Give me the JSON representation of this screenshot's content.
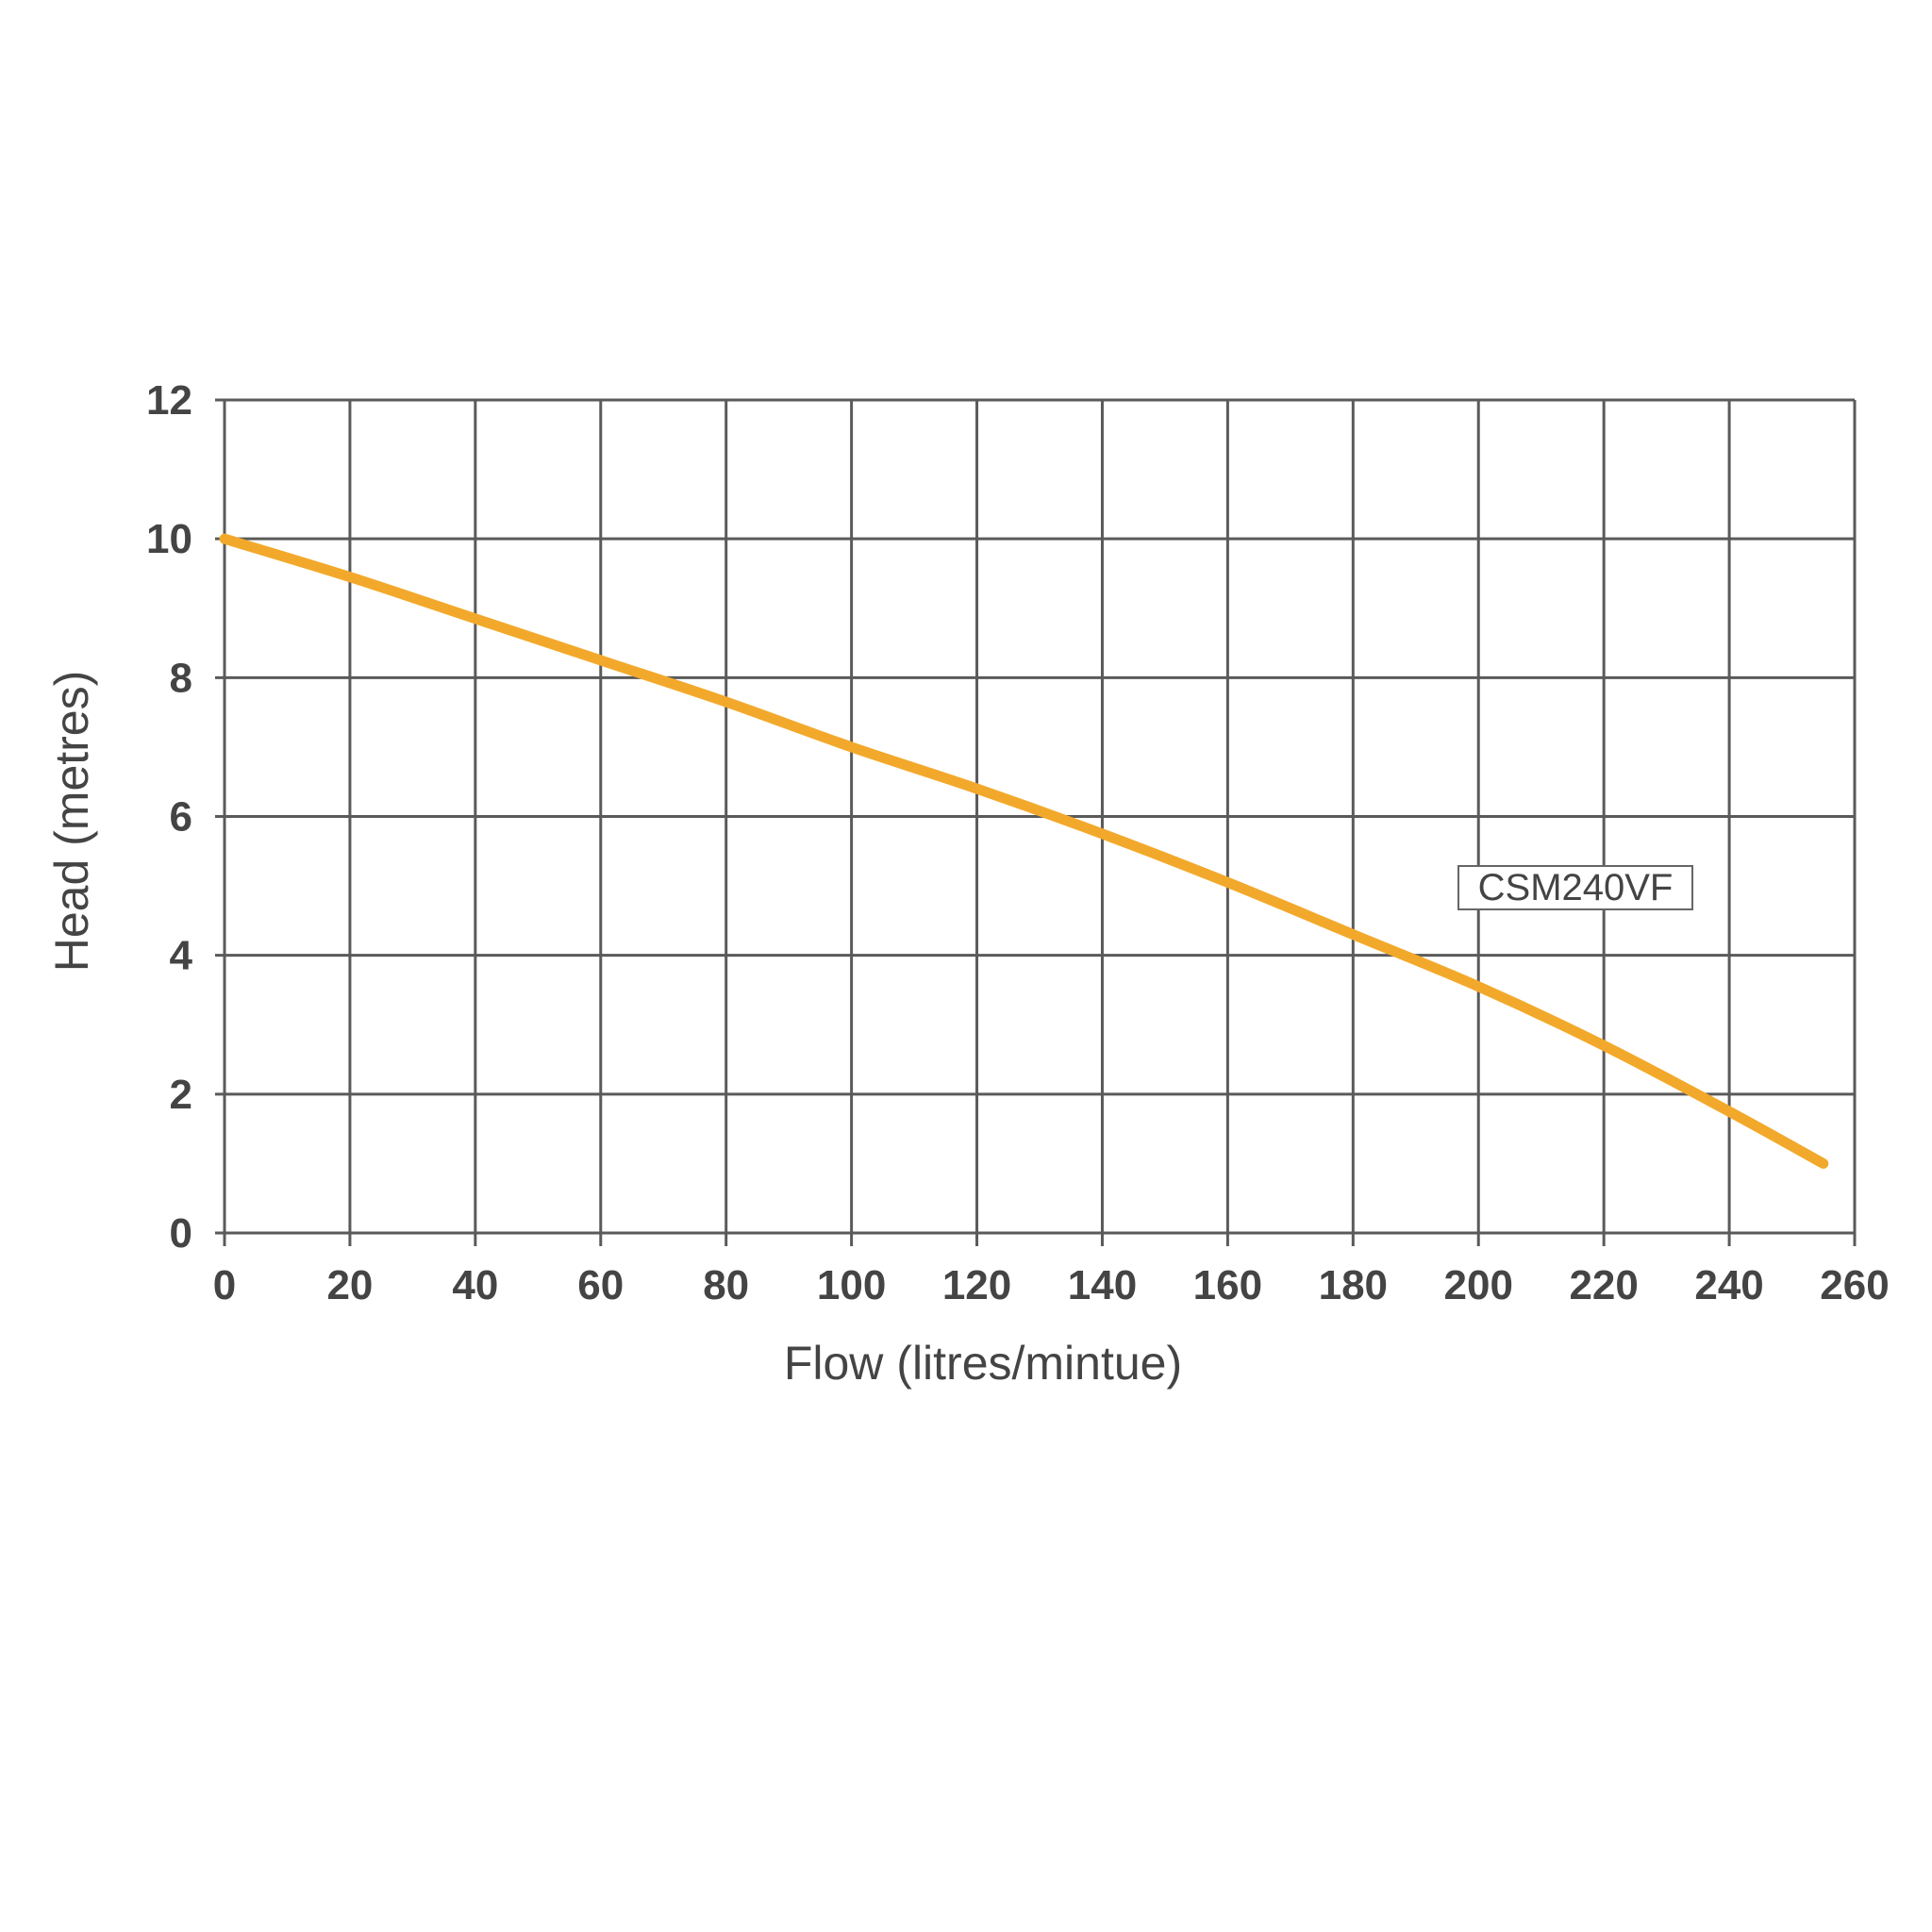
{
  "chart_data": {
    "type": "line",
    "title": "",
    "xlabel": "Flow (litres/mintue)",
    "ylabel": "Head (metres)",
    "xlim": [
      0,
      260
    ],
    "ylim": [
      0,
      12
    ],
    "x_ticks": [
      0,
      20,
      40,
      60,
      80,
      100,
      120,
      140,
      160,
      180,
      200,
      220,
      240,
      260
    ],
    "y_ticks": [
      0,
      2,
      4,
      6,
      8,
      10,
      12
    ],
    "grid": true,
    "series": [
      {
        "name": "CSM240VF",
        "color": "#F2A92B",
        "x": [
          0,
          20,
          40,
          60,
          80,
          100,
          120,
          140,
          160,
          180,
          200,
          220,
          240,
          255
        ],
        "y": [
          10.0,
          9.45,
          8.85,
          8.25,
          7.65,
          7.0,
          6.4,
          5.75,
          5.05,
          4.3,
          3.55,
          2.7,
          1.75,
          1.0
        ]
      }
    ],
    "annotation": "CSM240VF"
  }
}
